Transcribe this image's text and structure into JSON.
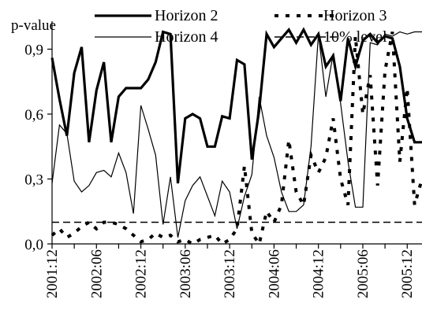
{
  "chart_data": {
    "type": "line",
    "ylabel": "p-value",
    "ylim": [
      0,
      1
    ],
    "yticks": [
      {
        "value": 0.0,
        "label": "0,0"
      },
      {
        "value": 0.3,
        "label": "0,3"
      },
      {
        "value": 0.6,
        "label": "0,6"
      },
      {
        "value": 0.9,
        "label": "0,9"
      }
    ],
    "xticks": [
      {
        "index": 0,
        "label": "2001:12"
      },
      {
        "index": 6,
        "label": "2002:06"
      },
      {
        "index": 12,
        "label": "2002:12"
      },
      {
        "index": 18,
        "label": "2003:06"
      },
      {
        "index": 24,
        "label": "2003:12"
      },
      {
        "index": 30,
        "label": "2004:06"
      },
      {
        "index": 36,
        "label": "2004:12"
      },
      {
        "index": 42,
        "label": "2005:06"
      },
      {
        "index": 48,
        "label": "2005:12"
      }
    ],
    "x_start": "2001:12",
    "n_points": 51,
    "legend_position": "top",
    "series": [
      {
        "name": "Horizon 2",
        "style": "thick-solid",
        "values": [
          0.86,
          0.67,
          0.5,
          0.79,
          0.91,
          0.47,
          0.71,
          0.84,
          0.47,
          0.68,
          0.72,
          0.72,
          0.72,
          0.76,
          0.84,
          0.98,
          0.97,
          0.28,
          0.58,
          0.6,
          0.58,
          0.45,
          0.45,
          0.59,
          0.58,
          0.85,
          0.83,
          0.39,
          0.62,
          0.97,
          0.91,
          0.95,
          0.99,
          0.93,
          0.99,
          0.92,
          0.97,
          0.82,
          0.87,
          0.66,
          0.95,
          0.82,
          0.94,
          0.97,
          0.93,
          0.96,
          0.95,
          0.82,
          0.58,
          0.47,
          0.47
        ]
      },
      {
        "name": "Horizon 3",
        "style": "thick-dotted",
        "values": [
          0.04,
          0.07,
          0.03,
          0.05,
          0.08,
          0.1,
          0.07,
          0.1,
          0.1,
          0.09,
          0.07,
          0.04,
          0.01,
          0.02,
          0.05,
          0.03,
          0.04,
          0.01,
          0.02,
          0.0,
          0.02,
          0.03,
          0.04,
          0.0,
          0.02,
          0.07,
          0.36,
          0.05,
          0.0,
          0.15,
          0.1,
          0.18,
          0.48,
          0.24,
          0.18,
          0.41,
          0.33,
          0.4,
          0.58,
          0.3,
          0.18,
          0.96,
          0.6,
          0.78,
          0.27,
          0.8,
          0.98,
          0.38,
          0.72,
          0.18,
          0.3
        ]
      },
      {
        "name": "Horizon 4",
        "style": "thin-solid",
        "values": [
          0.28,
          0.55,
          0.51,
          0.29,
          0.24,
          0.27,
          0.33,
          0.34,
          0.31,
          0.42,
          0.33,
          0.14,
          0.64,
          0.53,
          0.41,
          0.09,
          0.31,
          0.03,
          0.2,
          0.27,
          0.31,
          0.22,
          0.13,
          0.29,
          0.24,
          0.07,
          0.22,
          0.32,
          0.68,
          0.5,
          0.4,
          0.24,
          0.15,
          0.15,
          0.18,
          0.45,
          0.97,
          0.68,
          0.88,
          0.65,
          0.38,
          0.17,
          0.17,
          0.93,
          0.92,
          0.97,
          0.96,
          0.98,
          0.97,
          0.98,
          0.98
        ]
      },
      {
        "name": "10% level",
        "style": "dashed",
        "values": [
          0.1,
          0.1,
          0.1,
          0.1,
          0.1,
          0.1,
          0.1,
          0.1,
          0.1,
          0.1,
          0.1,
          0.1,
          0.1,
          0.1,
          0.1,
          0.1,
          0.1,
          0.1,
          0.1,
          0.1,
          0.1,
          0.1,
          0.1,
          0.1,
          0.1,
          0.1,
          0.1,
          0.1,
          0.1,
          0.1,
          0.1,
          0.1,
          0.1,
          0.1,
          0.1,
          0.1,
          0.1,
          0.1,
          0.1,
          0.1,
          0.1,
          0.1,
          0.1,
          0.1,
          0.1,
          0.1,
          0.1,
          0.1,
          0.1,
          0.1,
          0.1
        ]
      }
    ],
    "colors": {
      "line": "#000000",
      "background": "#ffffff"
    }
  }
}
